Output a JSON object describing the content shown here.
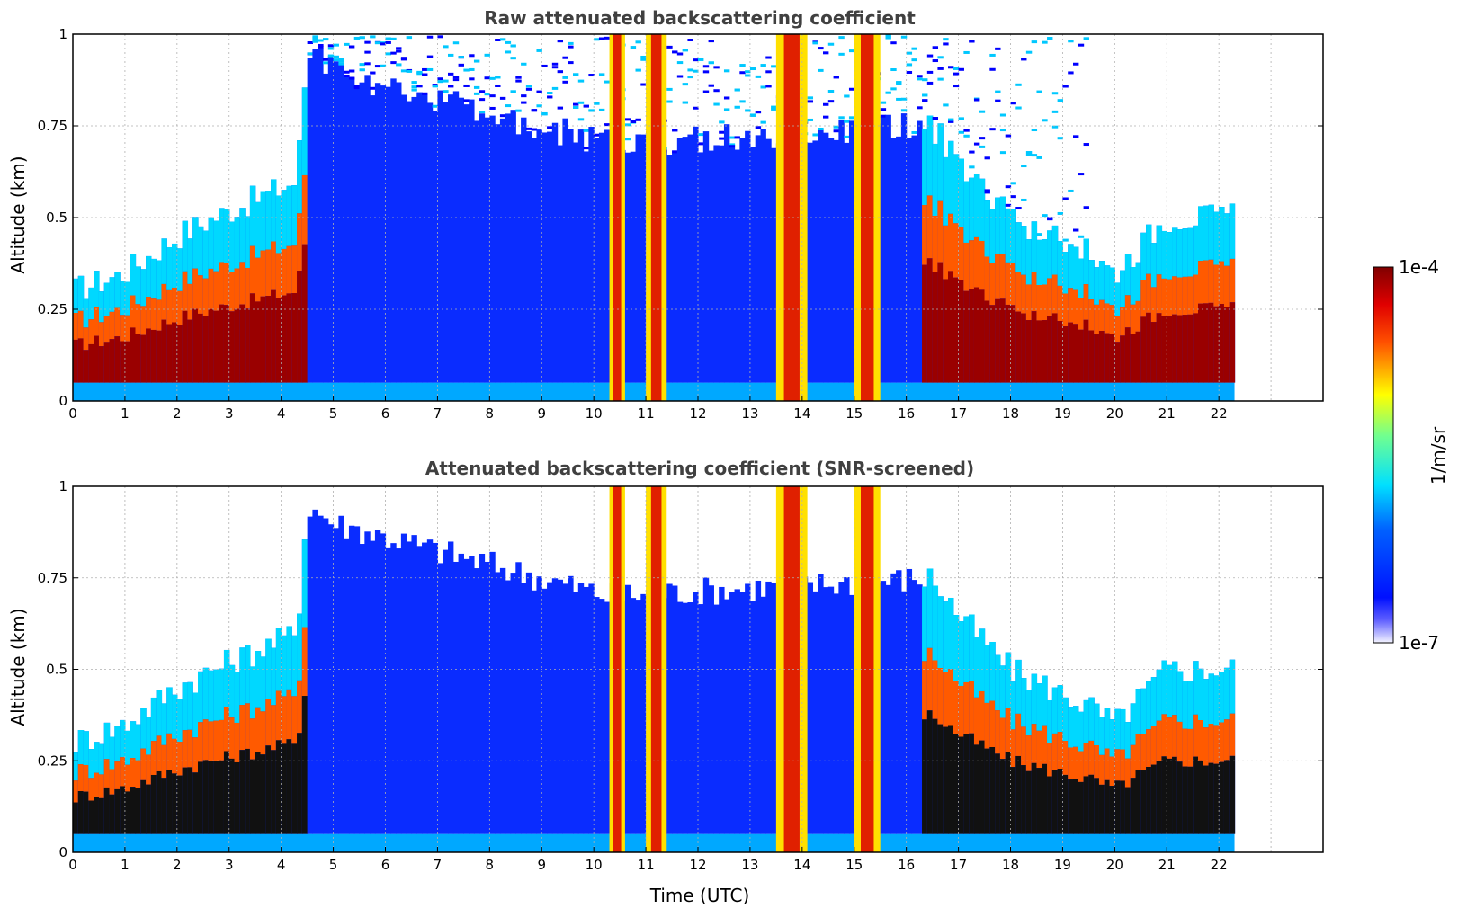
{
  "chart_data": [
    {
      "type": "heatmap",
      "title": "Raw attenuated backscattering coefficient",
      "xlabel": "",
      "ylabel": "Altitude (km)",
      "xlim": [
        0,
        24
      ],
      "ylim": [
        0,
        1
      ],
      "x_ticks": [
        "0",
        "1",
        "2",
        "3",
        "4",
        "5",
        "6",
        "7",
        "8",
        "9",
        "10",
        "11",
        "12",
        "13",
        "14",
        "15",
        "16",
        "17",
        "18",
        "19",
        "20",
        "21",
        "22"
      ],
      "y_ticks": [
        "0",
        "0.25",
        "0.5",
        "0.75",
        "1"
      ],
      "y_tick_values": [
        0,
        0.25,
        0.5,
        0.75,
        1
      ],
      "grid": true,
      "data_end_time": 22.3,
      "layer_top_km": [
        [
          0,
          0.3
        ],
        [
          1,
          0.35
        ],
        [
          2,
          0.45
        ],
        [
          2.7,
          0.5
        ],
        [
          4.3,
          0.6
        ],
        [
          4.5,
          0.95
        ],
        [
          5,
          0.9
        ],
        [
          10.3,
          0.7
        ],
        [
          16.5,
          0.75
        ],
        [
          17,
          0.65
        ],
        [
          18,
          0.5
        ],
        [
          19.5,
          0.4
        ],
        [
          20,
          0.35
        ],
        [
          21,
          0.5
        ],
        [
          22.3,
          0.5
        ]
      ],
      "vertical_bands_hours": [
        [
          10.3,
          10.6
        ],
        [
          11.0,
          11.4
        ],
        [
          13.5,
          14.1
        ],
        [
          15.0,
          15.5
        ]
      ],
      "snr_screened": false
    },
    {
      "type": "heatmap",
      "title": "Attenuated backscattering coefficient (SNR-screened)",
      "xlabel": "Time (UTC)",
      "ylabel": "Altitude (km)",
      "xlim": [
        0,
        24
      ],
      "ylim": [
        0,
        1
      ],
      "x_ticks": [
        "0",
        "1",
        "2",
        "3",
        "4",
        "5",
        "6",
        "7",
        "8",
        "9",
        "10",
        "11",
        "12",
        "13",
        "14",
        "15",
        "16",
        "17",
        "18",
        "19",
        "20",
        "21",
        "22"
      ],
      "y_ticks": [
        "0",
        "0.25",
        "0.5",
        "0.75",
        "1"
      ],
      "y_tick_values": [
        0,
        0.25,
        0.5,
        0.75,
        1
      ],
      "grid": true,
      "data_end_time": 22.3,
      "layer_top_km": [
        [
          0,
          0.3
        ],
        [
          1,
          0.35
        ],
        [
          2,
          0.45
        ],
        [
          2.7,
          0.5
        ],
        [
          4.3,
          0.6
        ],
        [
          4.5,
          0.95
        ],
        [
          5,
          0.9
        ],
        [
          10.3,
          0.7
        ],
        [
          16.5,
          0.75
        ],
        [
          17,
          0.65
        ],
        [
          18,
          0.5
        ],
        [
          19.5,
          0.4
        ],
        [
          20,
          0.35
        ],
        [
          21,
          0.5
        ],
        [
          22.3,
          0.5
        ]
      ],
      "vertical_bands_hours": [
        [
          10.3,
          10.6
        ],
        [
          11.0,
          11.4
        ],
        [
          13.5,
          14.1
        ],
        [
          15.0,
          15.5
        ]
      ],
      "snr_screened": true
    }
  ],
  "colorbar": {
    "label": "1/m/sr",
    "max_label": "1e-4",
    "min_label": "1e-7",
    "scale": "log",
    "range": [
      1e-07,
      0.0001
    ],
    "colormap": [
      "#f4f4ff",
      "#0000ff",
      "#00ffff",
      "#ffff00",
      "#ff4000",
      "#800000"
    ]
  }
}
